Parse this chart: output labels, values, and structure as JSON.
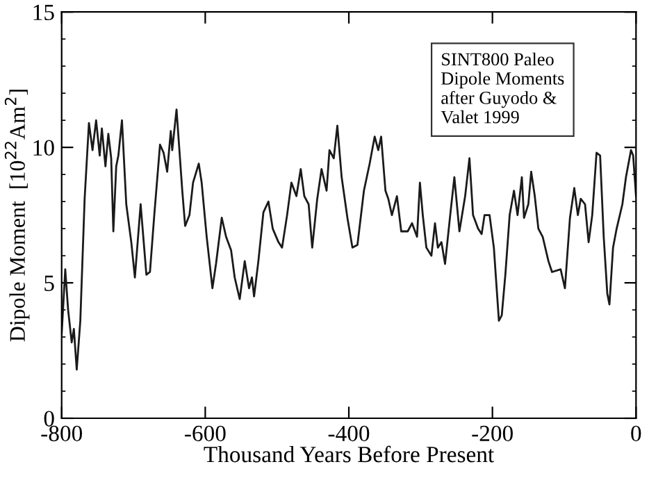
{
  "chart_data": {
    "type": "line",
    "xlabel": "Thousand Years Before Present",
    "ylabel": "Dipole Moment  [10$^{22}$Am$^{2}$]",
    "annotations": [
      "SINT800 Paleo\nDipole Moments\nafter Guyodo &\nValet 1999"
    ],
    "x": [
      -800,
      -795,
      -791,
      -786,
      -783,
      -779,
      -774,
      -768,
      -762,
      -757,
      -752,
      -747,
      -744,
      -739,
      -735,
      -731,
      -728,
      -724,
      -721,
      -716,
      -710,
      -703,
      -698,
      -690,
      -682,
      -677,
      -671,
      -663,
      -658,
      -653,
      -648,
      -646,
      -640,
      -632,
      -628,
      -622,
      -617,
      -609,
      -605,
      -598,
      -590,
      -585,
      -577,
      -571,
      -564,
      -559,
      -552,
      -545,
      -539,
      -535,
      -532,
      -526,
      -519,
      -512,
      -506,
      -498,
      -493,
      -486,
      -480,
      -473,
      -467,
      -462,
      -456,
      -451,
      -444,
      -438,
      -431,
      -427,
      -421,
      -416,
      -410,
      -402,
      -395,
      -388,
      -379,
      -371,
      -364,
      -359,
      -355,
      -349,
      -345,
      -340,
      -333,
      -327,
      -318,
      -312,
      -305,
      -301,
      -297,
      -292,
      -285,
      -280,
      -276,
      -271,
      -266,
      -258,
      -253,
      -246,
      -238,
      -232,
      -227,
      -220,
      -215,
      -211,
      -204,
      -198,
      -191,
      -187,
      -182,
      -176,
      -170,
      -165,
      -159,
      -156,
      -150,
      -146,
      -141,
      -136,
      -130,
      -122,
      -117,
      -105,
      -99,
      -92,
      -86,
      -81,
      -77,
      -71,
      -66,
      -61,
      -55,
      -50,
      -45,
      -40,
      -37,
      -32,
      -27,
      -19,
      -14,
      -7,
      -4,
      0
    ],
    "series": [
      {
        "color": "#1a1a1a",
        "values": [
          3.1,
          5.5,
          4.0,
          2.8,
          3.3,
          1.8,
          3.6,
          8.1,
          10.9,
          9.9,
          11.0,
          9.7,
          10.7,
          9.3,
          10.5,
          9.6,
          6.9,
          9.3,
          9.7,
          11.0,
          7.9,
          6.5,
          5.2,
          7.9,
          5.3,
          5.4,
          7.5,
          10.1,
          9.8,
          9.1,
          10.6,
          9.9,
          11.4,
          8.4,
          7.1,
          7.5,
          8.7,
          9.4,
          8.7,
          6.7,
          4.8,
          5.7,
          7.4,
          6.7,
          6.2,
          5.2,
          4.4,
          5.8,
          4.8,
          5.2,
          4.5,
          5.8,
          7.6,
          8.0,
          7.0,
          6.5,
          6.3,
          7.5,
          8.7,
          8.2,
          9.2,
          8.2,
          7.9,
          6.3,
          8.1,
          9.2,
          8.4,
          9.9,
          9.6,
          10.8,
          8.9,
          7.4,
          6.3,
          6.4,
          8.4,
          9.4,
          10.4,
          9.9,
          10.4,
          8.4,
          8.1,
          7.5,
          8.2,
          6.9,
          6.9,
          7.2,
          6.7,
          8.7,
          7.5,
          6.3,
          6.0,
          7.2,
          6.3,
          6.5,
          5.7,
          7.7,
          8.9,
          6.9,
          8.2,
          9.6,
          7.5,
          7.0,
          6.8,
          7.5,
          7.5,
          6.3,
          3.6,
          3.8,
          5.3,
          7.5,
          8.4,
          7.5,
          8.9,
          7.4,
          7.9,
          9.1,
          8.2,
          7.0,
          6.7,
          5.8,
          5.4,
          5.5,
          4.8,
          7.4,
          8.5,
          7.5,
          8.1,
          7.9,
          6.5,
          7.5,
          9.8,
          9.7,
          6.7,
          4.6,
          4.2,
          6.3,
          7.0,
          7.9,
          8.9,
          9.9,
          9.7,
          8.2
        ]
      }
    ],
    "xlim": [
      -800,
      0
    ],
    "xticks": [
      -800,
      -600,
      -400,
      -200,
      0
    ],
    "ylim": [
      0,
      15
    ],
    "yticks": [
      0,
      5,
      10,
      15
    ],
    "grid": false,
    "legend": false,
    "marker": "none",
    "line_style": "solid"
  }
}
